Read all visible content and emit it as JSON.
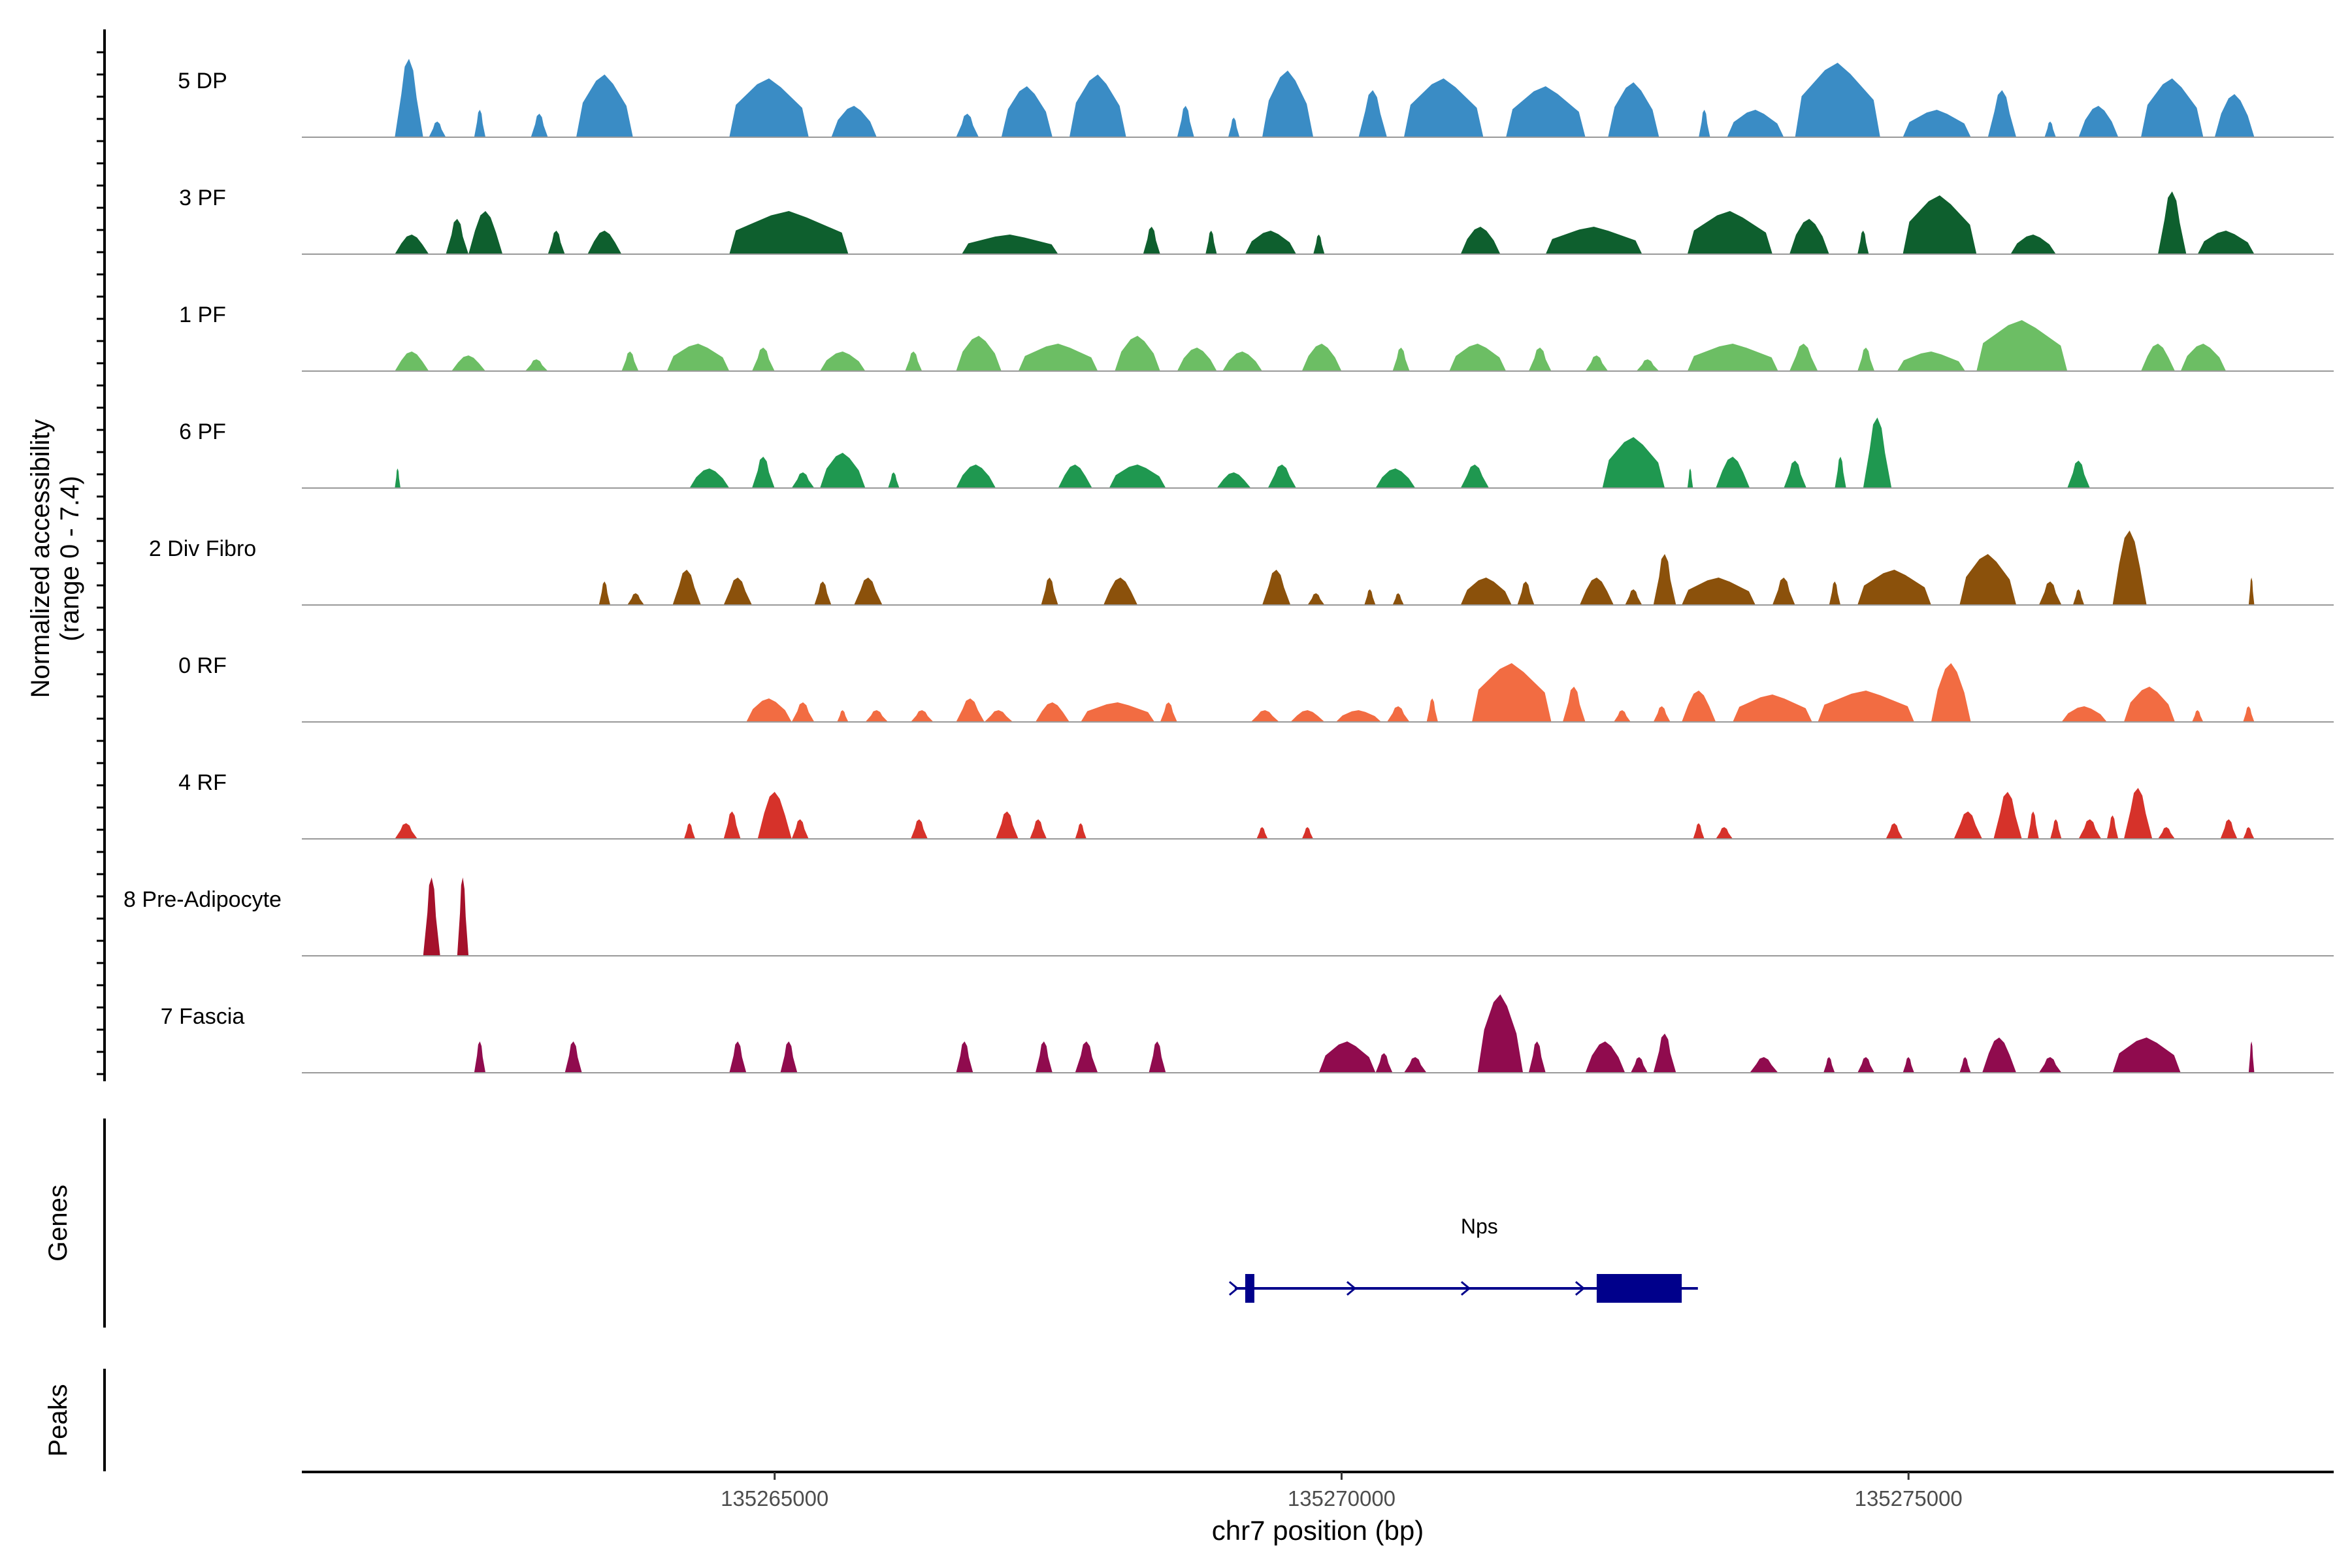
{
  "chart_data": {
    "type": "area",
    "title": "",
    "ylabel_line1": "Normalized accessibility",
    "ylabel_line2": "(range 0 - 7.4)",
    "xlabel": "chr7 position (bp)",
    "xlim": [
      135260830,
      135278750
    ],
    "xticks": [
      {
        "value": 135265000,
        "label": "135265000"
      },
      {
        "value": 135270000,
        "label": "135270000"
      },
      {
        "value": 135275000,
        "label": "135275000"
      }
    ],
    "panel_labels": {
      "genes": "Genes",
      "peaks": "Peaks"
    },
    "series": [
      {
        "name": "5 DP",
        "color": "#3a8cc5",
        "peaks": [
          [
            135261650,
            135261900,
            1.0
          ],
          [
            135261950,
            135262100,
            0.2
          ],
          [
            135262350,
            135262450,
            0.35
          ],
          [
            135262850,
            135263000,
            0.3
          ],
          [
            135263250,
            135263750,
            0.8
          ],
          [
            135264600,
            135265300,
            0.75
          ],
          [
            135265500,
            135265900,
            0.4
          ],
          [
            135266600,
            135266800,
            0.3
          ],
          [
            135267000,
            135267450,
            0.65
          ],
          [
            135267600,
            135268100,
            0.8
          ],
          [
            135268550,
            135268700,
            0.4
          ],
          [
            135269000,
            135269100,
            0.25
          ],
          [
            135269300,
            135269750,
            0.85
          ],
          [
            135270150,
            135270400,
            0.6
          ],
          [
            135270550,
            135271250,
            0.75
          ],
          [
            135271450,
            135272150,
            0.65
          ],
          [
            135272350,
            135272800,
            0.7
          ],
          [
            135273150,
            135273250,
            0.35
          ],
          [
            135273400,
            135273900,
            0.35
          ],
          [
            135274000,
            135274750,
            0.95
          ],
          [
            135274950,
            135275550,
            0.35
          ],
          [
            135275700,
            135275950,
            0.6
          ],
          [
            135276200,
            135276300,
            0.2
          ],
          [
            135276500,
            135276850,
            0.4
          ],
          [
            135277050,
            135277600,
            0.75
          ],
          [
            135277700,
            135278050,
            0.55
          ]
        ]
      },
      {
        "name": "3 PF",
        "color": "#0e5f2e",
        "peaks": [
          [
            135261650,
            135261950,
            0.25
          ],
          [
            135262100,
            135262300,
            0.45
          ],
          [
            135262300,
            135262600,
            0.55
          ],
          [
            135263000,
            135263150,
            0.3
          ],
          [
            135263350,
            135263650,
            0.3
          ],
          [
            135264600,
            135265650,
            0.55
          ],
          [
            135266650,
            135267500,
            0.25
          ],
          [
            135268250,
            135268400,
            0.35
          ],
          [
            135268800,
            135268900,
            0.3
          ],
          [
            135269150,
            135269600,
            0.3
          ],
          [
            135269750,
            135269850,
            0.25
          ],
          [
            135271050,
            135271400,
            0.35
          ],
          [
            135271800,
            135272650,
            0.35
          ],
          [
            135273050,
            135273800,
            0.55
          ],
          [
            135273950,
            135274300,
            0.45
          ],
          [
            135274550,
            135274650,
            0.3
          ],
          [
            135274950,
            135275600,
            0.75
          ],
          [
            135275900,
            135276300,
            0.25
          ],
          [
            135277200,
            135277450,
            0.8
          ],
          [
            135277550,
            135278050,
            0.3
          ]
        ]
      },
      {
        "name": "1 PF",
        "color": "#6cbe64",
        "peaks": [
          [
            135261650,
            135261950,
            0.25
          ],
          [
            135262150,
            135262450,
            0.2
          ],
          [
            135262800,
            135263000,
            0.15
          ],
          [
            135263650,
            135263800,
            0.25
          ],
          [
            135264050,
            135264600,
            0.35
          ],
          [
            135264800,
            135265000,
            0.3
          ],
          [
            135265400,
            135265800,
            0.25
          ],
          [
            135266150,
            135266300,
            0.25
          ],
          [
            135266600,
            135267000,
            0.45
          ],
          [
            135267150,
            135267850,
            0.35
          ],
          [
            135268000,
            135268400,
            0.45
          ],
          [
            135268550,
            135268900,
            0.3
          ],
          [
            135268950,
            135269300,
            0.25
          ],
          [
            135269650,
            135270000,
            0.35
          ],
          [
            135270450,
            135270600,
            0.3
          ],
          [
            135270950,
            135271450,
            0.35
          ],
          [
            135271650,
            135271850,
            0.3
          ],
          [
            135272150,
            135272350,
            0.2
          ],
          [
            135272600,
            135272800,
            0.15
          ],
          [
            135273050,
            135273850,
            0.35
          ],
          [
            135273950,
            135274200,
            0.35
          ],
          [
            135274550,
            135274700,
            0.3
          ],
          [
            135274900,
            135275500,
            0.25
          ],
          [
            135275600,
            135276400,
            0.65
          ],
          [
            135277050,
            135277350,
            0.35
          ],
          [
            135277400,
            135277800,
            0.35
          ]
        ]
      },
      {
        "name": "6 PF",
        "color": "#1f9850",
        "peaks": [
          [
            135261650,
            135261700,
            0.25
          ],
          [
            135264250,
            135264600,
            0.25
          ],
          [
            135264800,
            135265000,
            0.4
          ],
          [
            135265150,
            135265350,
            0.2
          ],
          [
            135265400,
            135265800,
            0.45
          ],
          [
            135266000,
            135266100,
            0.2
          ],
          [
            135266600,
            135266950,
            0.3
          ],
          [
            135267500,
            135267800,
            0.3
          ],
          [
            135267950,
            135268450,
            0.3
          ],
          [
            135268900,
            135269200,
            0.2
          ],
          [
            135269350,
            135269600,
            0.3
          ],
          [
            135270300,
            135270650,
            0.25
          ],
          [
            135271050,
            135271300,
            0.3
          ],
          [
            135272300,
            135272850,
            0.65
          ],
          [
            135273050,
            135273100,
            0.25
          ],
          [
            135273300,
            135273600,
            0.4
          ],
          [
            135273900,
            135274100,
            0.35
          ],
          [
            135274350,
            135274450,
            0.4
          ],
          [
            135274600,
            135274850,
            0.9
          ],
          [
            135276400,
            135276600,
            0.35
          ]
        ]
      },
      {
        "name": "2 Div Fibro",
        "color": "#8b510b",
        "peaks": [
          [
            135263450,
            135263550,
            0.3
          ],
          [
            135263700,
            135263850,
            0.15
          ],
          [
            135264100,
            135264350,
            0.45
          ],
          [
            135264550,
            135264800,
            0.35
          ],
          [
            135265350,
            135265500,
            0.3
          ],
          [
            135265700,
            135265950,
            0.35
          ],
          [
            135267350,
            135267500,
            0.35
          ],
          [
            135267900,
            135268200,
            0.35
          ],
          [
            135269300,
            135269550,
            0.45
          ],
          [
            135269700,
            135269850,
            0.15
          ],
          [
            135270200,
            135270300,
            0.2
          ],
          [
            135270450,
            135270550,
            0.15
          ],
          [
            135271050,
            135271500,
            0.35
          ],
          [
            135271550,
            135271700,
            0.3
          ],
          [
            135272100,
            135272400,
            0.35
          ],
          [
            135272500,
            135272650,
            0.2
          ],
          [
            135272750,
            135272950,
            0.65
          ],
          [
            135273000,
            135273650,
            0.35
          ],
          [
            135273800,
            135274000,
            0.35
          ],
          [
            135274300,
            135274400,
            0.3
          ],
          [
            135274550,
            135275200,
            0.45
          ],
          [
            135275450,
            135275950,
            0.65
          ],
          [
            135276150,
            135276350,
            0.3
          ],
          [
            135276450,
            135276550,
            0.2
          ],
          [
            135276800,
            135277100,
            0.95
          ],
          [
            135278000,
            135278050,
            0.35
          ]
        ]
      },
      {
        "name": "0 RF",
        "color": "#f26c42",
        "peaks": [
          [
            135264750,
            135265150,
            0.3
          ],
          [
            135265150,
            135265350,
            0.25
          ],
          [
            135265550,
            135265650,
            0.15
          ],
          [
            135265800,
            135266000,
            0.15
          ],
          [
            135266200,
            135266400,
            0.15
          ],
          [
            135266600,
            135266850,
            0.3
          ],
          [
            135266850,
            135267100,
            0.15
          ],
          [
            135267300,
            135267600,
            0.25
          ],
          [
            135267700,
            135268350,
            0.25
          ],
          [
            135268400,
            135268550,
            0.25
          ],
          [
            135269200,
            135269450,
            0.15
          ],
          [
            135269550,
            135269850,
            0.15
          ],
          [
            135269950,
            135270350,
            0.15
          ],
          [
            135270400,
            135270600,
            0.2
          ],
          [
            135270750,
            135270850,
            0.3
          ],
          [
            135271150,
            135271850,
            0.75
          ],
          [
            135271950,
            135272150,
            0.45
          ],
          [
            135272400,
            135272550,
            0.15
          ],
          [
            135272750,
            135272900,
            0.2
          ],
          [
            135273000,
            135273300,
            0.4
          ],
          [
            135273450,
            135274150,
            0.35
          ],
          [
            135274200,
            135275050,
            0.4
          ],
          [
            135275200,
            135275550,
            0.75
          ],
          [
            135276350,
            135276750,
            0.2
          ],
          [
            135276900,
            135277350,
            0.45
          ],
          [
            135277500,
            135277600,
            0.15
          ],
          [
            135277950,
            135278050,
            0.2
          ]
        ]
      },
      {
        "name": "4 RF",
        "color": "#d6322a",
        "peaks": [
          [
            135261650,
            135261850,
            0.2
          ],
          [
            135264200,
            135264300,
            0.2
          ],
          [
            135264550,
            135264700,
            0.35
          ],
          [
            135264850,
            135265150,
            0.6
          ],
          [
            135265150,
            135265300,
            0.25
          ],
          [
            135266200,
            135266350,
            0.25
          ],
          [
            135266950,
            135267150,
            0.35
          ],
          [
            135267250,
            135267400,
            0.25
          ],
          [
            135267650,
            135267750,
            0.2
          ],
          [
            135269250,
            135269350,
            0.15
          ],
          [
            135269650,
            135269750,
            0.15
          ],
          [
            135273100,
            135273200,
            0.2
          ],
          [
            135273300,
            135273450,
            0.15
          ],
          [
            135274800,
            135274950,
            0.2
          ],
          [
            135275400,
            135275650,
            0.35
          ],
          [
            135275750,
            135276000,
            0.6
          ],
          [
            135276050,
            135276150,
            0.35
          ],
          [
            135276250,
            135276350,
            0.25
          ],
          [
            135276500,
            135276700,
            0.25
          ],
          [
            135276750,
            135276850,
            0.3
          ],
          [
            135276900,
            135277150,
            0.65
          ],
          [
            135277200,
            135277350,
            0.15
          ],
          [
            135277750,
            135277900,
            0.25
          ],
          [
            135277950,
            135278050,
            0.15
          ]
        ]
      },
      {
        "name": "8 Pre-Adipocyte",
        "color": "#a5112b",
        "peaks": [
          [
            135261900,
            135262050,
            1.0
          ],
          [
            135262200,
            135262300,
            1.0
          ]
        ]
      },
      {
        "name": "7 Fascia",
        "color": "#900b4e",
        "peaks": [
          [
            135262350,
            135262450,
            0.4
          ],
          [
            135263150,
            135263300,
            0.4
          ],
          [
            135264600,
            135264750,
            0.4
          ],
          [
            135265050,
            135265200,
            0.4
          ],
          [
            135266600,
            135266750,
            0.4
          ],
          [
            135267300,
            135267450,
            0.4
          ],
          [
            135267650,
            135267850,
            0.4
          ],
          [
            135268300,
            135268450,
            0.4
          ],
          [
            135269800,
            135270300,
            0.4
          ],
          [
            135270300,
            135270450,
            0.25
          ],
          [
            135270550,
            135270750,
            0.2
          ],
          [
            135271200,
            135271600,
            1.0
          ],
          [
            135271650,
            135271800,
            0.4
          ],
          [
            135272150,
            135272500,
            0.4
          ],
          [
            135272550,
            135272700,
            0.2
          ],
          [
            135272750,
            135272950,
            0.5
          ],
          [
            135273600,
            135273850,
            0.2
          ],
          [
            135274250,
            135274350,
            0.2
          ],
          [
            135274550,
            135274700,
            0.2
          ],
          [
            135274950,
            135275050,
            0.2
          ],
          [
            135275450,
            135275550,
            0.2
          ],
          [
            135275650,
            135275950,
            0.45
          ],
          [
            135276150,
            135276350,
            0.2
          ],
          [
            135276800,
            135277400,
            0.45
          ],
          [
            135278000,
            135278050,
            0.4
          ]
        ]
      }
    ],
    "gene": {
      "name": "Nps",
      "strand": "+",
      "start": 135269000,
      "end": 135273200,
      "exons": [
        [
          135269150,
          135269230
        ],
        [
          135272250,
          135273000
        ]
      ],
      "color": "#00008b"
    }
  }
}
